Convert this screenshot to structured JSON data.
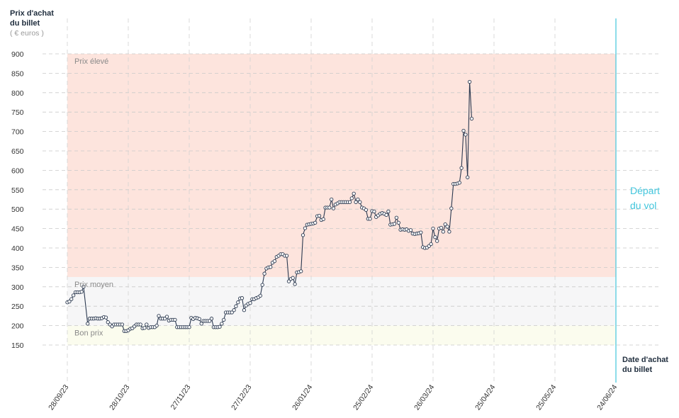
{
  "chart_data": {
    "type": "line",
    "ylabel": "Prix d'achat du billet",
    "ylabel_lines": [
      "Prix d'achat",
      "du billet"
    ],
    "yunit": "( € euros )",
    "xlabel": "Date d'achat du billet",
    "xlabel_lines": [
      "Date d'achat",
      "du billet"
    ],
    "ylim": [
      150,
      900
    ],
    "xlim": [
      "2023-09-28",
      "2024-06-24"
    ],
    "grid": true,
    "y_ticks": [
      150,
      200,
      250,
      300,
      350,
      400,
      450,
      500,
      550,
      600,
      650,
      700,
      750,
      800,
      850,
      900
    ],
    "x_ticks": [
      {
        "date": "2023-09-28",
        "label": "28/09/23"
      },
      {
        "date": "2023-10-28",
        "label": "28/10/23"
      },
      {
        "date": "2023-11-27",
        "label": "27/11/23"
      },
      {
        "date": "2023-12-27",
        "label": "27/12/23"
      },
      {
        "date": "2024-01-26",
        "label": "26/01/24"
      },
      {
        "date": "2024-02-25",
        "label": "25/02/24"
      },
      {
        "date": "2024-03-26",
        "label": "26/03/24"
      },
      {
        "date": "2024-04-25",
        "label": "25/04/24"
      },
      {
        "date": "2024-05-25",
        "label": "25/05/24"
      },
      {
        "date": "2024-06-24",
        "label": "24/06/24"
      }
    ],
    "bands": [
      {
        "label": "Prix élevé",
        "from": 325,
        "to": 900,
        "color": "#fde4dd"
      },
      {
        "label": "Prix moyen",
        "from": 200,
        "to": 325,
        "color": "#f6f6f7"
      },
      {
        "label": "Bon prix",
        "from": 150,
        "to": 200,
        "color": "#fbfcee"
      }
    ],
    "departure": {
      "date": "2024-06-24",
      "label_lines": [
        "Départ",
        "du vol"
      ],
      "color": "#42c6dd"
    },
    "series": [
      {
        "color": "#2b3950",
        "points": [
          [
            "2023-09-28",
            260
          ],
          [
            "2023-09-29",
            262
          ],
          [
            "2023-09-30",
            268
          ],
          [
            "2023-10-01",
            278
          ],
          [
            "2023-10-02",
            286
          ],
          [
            "2023-10-03",
            286
          ],
          [
            "2023-10-04",
            286
          ],
          [
            "2023-10-05",
            287
          ],
          [
            "2023-10-06",
            300
          ],
          [
            "2023-10-08",
            205
          ],
          [
            "2023-10-09",
            218
          ],
          [
            "2023-10-10",
            218
          ],
          [
            "2023-10-11",
            218
          ],
          [
            "2023-10-12",
            219
          ],
          [
            "2023-10-13",
            218
          ],
          [
            "2023-10-14",
            218
          ],
          [
            "2023-10-15",
            219
          ],
          [
            "2023-10-16",
            222
          ],
          [
            "2023-10-17",
            221
          ],
          [
            "2023-10-18",
            209
          ],
          [
            "2023-10-19",
            203
          ],
          [
            "2023-10-20",
            198
          ],
          [
            "2023-10-21",
            203
          ],
          [
            "2023-10-22",
            203
          ],
          [
            "2023-10-23",
            203
          ],
          [
            "2023-10-24",
            203
          ],
          [
            "2023-10-25",
            203
          ],
          [
            "2023-10-26",
            186
          ],
          [
            "2023-10-27",
            186
          ],
          [
            "2023-10-28",
            188
          ],
          [
            "2023-10-29",
            192
          ],
          [
            "2023-10-30",
            193
          ],
          [
            "2023-10-31",
            198
          ],
          [
            "2023-11-01",
            203
          ],
          [
            "2023-11-02",
            203
          ],
          [
            "2023-11-03",
            203
          ],
          [
            "2023-11-04",
            193
          ],
          [
            "2023-11-05",
            194
          ],
          [
            "2023-11-06",
            203
          ],
          [
            "2023-11-07",
            194
          ],
          [
            "2023-11-08",
            196
          ],
          [
            "2023-11-09",
            196
          ],
          [
            "2023-11-10",
            196
          ],
          [
            "2023-11-11",
            200
          ],
          [
            "2023-11-12",
            225
          ],
          [
            "2023-11-13",
            218
          ],
          [
            "2023-11-14",
            218
          ],
          [
            "2023-11-15",
            218
          ],
          [
            "2023-11-16",
            223
          ],
          [
            "2023-11-17",
            213
          ],
          [
            "2023-11-18",
            215
          ],
          [
            "2023-11-19",
            215
          ],
          [
            "2023-11-20",
            215
          ],
          [
            "2023-11-21",
            196
          ],
          [
            "2023-11-22",
            196
          ],
          [
            "2023-11-23",
            196
          ],
          [
            "2023-11-24",
            196
          ],
          [
            "2023-11-25",
            196
          ],
          [
            "2023-11-26",
            196
          ],
          [
            "2023-11-27",
            196
          ],
          [
            "2023-11-28",
            220
          ],
          [
            "2023-11-29",
            217
          ],
          [
            "2023-11-30",
            220
          ],
          [
            "2023-12-01",
            219
          ],
          [
            "2023-12-02",
            217
          ],
          [
            "2023-12-03",
            205
          ],
          [
            "2023-12-04",
            212
          ],
          [
            "2023-12-05",
            212
          ],
          [
            "2023-12-06",
            212
          ],
          [
            "2023-12-07",
            212
          ],
          [
            "2023-12-08",
            218
          ],
          [
            "2023-12-09",
            196
          ],
          [
            "2023-12-10",
            196
          ],
          [
            "2023-12-11",
            196
          ],
          [
            "2023-12-12",
            197
          ],
          [
            "2023-12-13",
            205
          ],
          [
            "2023-12-14",
            215
          ],
          [
            "2023-12-15",
            234
          ],
          [
            "2023-12-16",
            234
          ],
          [
            "2023-12-17",
            234
          ],
          [
            "2023-12-18",
            234
          ],
          [
            "2023-12-19",
            240
          ],
          [
            "2023-12-20",
            250
          ],
          [
            "2023-12-21",
            260
          ],
          [
            "2023-12-22",
            270
          ],
          [
            "2023-12-23",
            271
          ],
          [
            "2023-12-24",
            240
          ],
          [
            "2023-12-25",
            252
          ],
          [
            "2023-12-26",
            256
          ],
          [
            "2023-12-27",
            258
          ],
          [
            "2023-12-28",
            268
          ],
          [
            "2023-12-29",
            268
          ],
          [
            "2023-12-30",
            271
          ],
          [
            "2023-12-31",
            273
          ],
          [
            "2024-01-01",
            277
          ],
          [
            "2024-01-02",
            305
          ],
          [
            "2024-01-03",
            334
          ],
          [
            "2024-01-04",
            347
          ],
          [
            "2024-01-05",
            350
          ],
          [
            "2024-01-06",
            351
          ],
          [
            "2024-01-07",
            362
          ],
          [
            "2024-01-08",
            366
          ],
          [
            "2024-01-09",
            377
          ],
          [
            "2024-01-10",
            380
          ],
          [
            "2024-01-11",
            384
          ],
          [
            "2024-01-12",
            384
          ],
          [
            "2024-01-13",
            380
          ],
          [
            "2024-01-14",
            380
          ],
          [
            "2024-01-15",
            314
          ],
          [
            "2024-01-16",
            320
          ],
          [
            "2024-01-17",
            323
          ],
          [
            "2024-01-18",
            307
          ],
          [
            "2024-01-19",
            337
          ],
          [
            "2024-01-20",
            338
          ],
          [
            "2024-01-21",
            340
          ],
          [
            "2024-01-22",
            433
          ],
          [
            "2024-01-23",
            451
          ],
          [
            "2024-01-24",
            460
          ],
          [
            "2024-01-25",
            461
          ],
          [
            "2024-01-26",
            462
          ],
          [
            "2024-01-27",
            463
          ],
          [
            "2024-01-28",
            465
          ],
          [
            "2024-01-29",
            482
          ],
          [
            "2024-01-30",
            483
          ],
          [
            "2024-01-31",
            472
          ],
          [
            "2024-02-01",
            474
          ],
          [
            "2024-02-02",
            504
          ],
          [
            "2024-02-03",
            504
          ],
          [
            "2024-02-04",
            504
          ],
          [
            "2024-02-05",
            525
          ],
          [
            "2024-02-06",
            502
          ],
          [
            "2024-02-07",
            512
          ],
          [
            "2024-02-08",
            515
          ],
          [
            "2024-02-09",
            518
          ],
          [
            "2024-02-10",
            518
          ],
          [
            "2024-02-11",
            518
          ],
          [
            "2024-02-12",
            518
          ],
          [
            "2024-02-13",
            518
          ],
          [
            "2024-02-14",
            518
          ],
          [
            "2024-02-15",
            528
          ],
          [
            "2024-02-16",
            540
          ],
          [
            "2024-02-17",
            518
          ],
          [
            "2024-02-18",
            525
          ],
          [
            "2024-02-19",
            518
          ],
          [
            "2024-02-20",
            504
          ],
          [
            "2024-02-21",
            502
          ],
          [
            "2024-02-22",
            498
          ],
          [
            "2024-02-23",
            475
          ],
          [
            "2024-02-24",
            475
          ],
          [
            "2024-02-25",
            495
          ],
          [
            "2024-02-26",
            494
          ],
          [
            "2024-02-27",
            480
          ],
          [
            "2024-02-28",
            484
          ],
          [
            "2024-02-29",
            488
          ],
          [
            "2024-03-01",
            490
          ],
          [
            "2024-03-02",
            488
          ],
          [
            "2024-03-03",
            485
          ],
          [
            "2024-03-04",
            494
          ],
          [
            "2024-03-05",
            460
          ],
          [
            "2024-03-06",
            461
          ],
          [
            "2024-03-07",
            462
          ],
          [
            "2024-03-08",
            478
          ],
          [
            "2024-03-09",
            465
          ],
          [
            "2024-03-10",
            447
          ],
          [
            "2024-03-11",
            448
          ],
          [
            "2024-03-12",
            447
          ],
          [
            "2024-03-13",
            448
          ],
          [
            "2024-03-14",
            444
          ],
          [
            "2024-03-15",
            446
          ],
          [
            "2024-03-16",
            437
          ],
          [
            "2024-03-17",
            436
          ],
          [
            "2024-03-18",
            437
          ],
          [
            "2024-03-19",
            438
          ],
          [
            "2024-03-20",
            440
          ],
          [
            "2024-03-21",
            402
          ],
          [
            "2024-03-22",
            400
          ],
          [
            "2024-03-23",
            401
          ],
          [
            "2024-03-24",
            405
          ],
          [
            "2024-03-25",
            410
          ],
          [
            "2024-03-26",
            450
          ],
          [
            "2024-03-27",
            428
          ],
          [
            "2024-03-28",
            418
          ],
          [
            "2024-03-29",
            450
          ],
          [
            "2024-03-30",
            452
          ],
          [
            "2024-03-31",
            442
          ],
          [
            "2024-04-01",
            461
          ],
          [
            "2024-04-02",
            455
          ],
          [
            "2024-04-03",
            442
          ],
          [
            "2024-04-04",
            502
          ],
          [
            "2024-04-05",
            565
          ],
          [
            "2024-04-06",
            565
          ],
          [
            "2024-04-07",
            566
          ],
          [
            "2024-04-08",
            568
          ],
          [
            "2024-04-09",
            606
          ],
          [
            "2024-04-10",
            702
          ],
          [
            "2024-04-11",
            692
          ],
          [
            "2024-04-12",
            582
          ],
          [
            "2024-04-13",
            828
          ],
          [
            "2024-04-14",
            733
          ]
        ]
      }
    ]
  }
}
